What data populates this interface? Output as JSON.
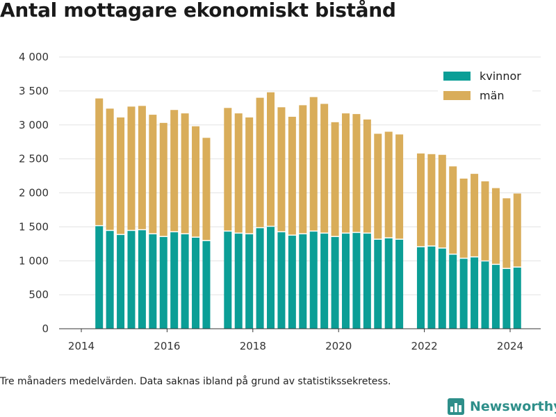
{
  "title": "Antal mottagare ekonomiskt bistånd",
  "footnote": "Tre månaders medelvärden. Data saknas ibland på grund av statistikssekretess.",
  "brand": {
    "name": "Newsworthy",
    "icon": "bar-chart-logo-icon",
    "color": "#2e8f8a"
  },
  "chart_data": {
    "type": "bar",
    "stacked": true,
    "title": "",
    "xlabel": "",
    "ylabel": "",
    "x_ticks": [
      "2014",
      "2016",
      "2018",
      "2020",
      "2022",
      "2024"
    ],
    "y_ticks": [
      "0",
      "500",
      "1 000",
      "1 500",
      "2 000",
      "2 500",
      "3 000",
      "3 500",
      "4 000"
    ],
    "ylim": [
      0,
      4000
    ],
    "grid": true,
    "legend_position": "top-right",
    "x": [
      "2014-06",
      "2014-09",
      "2014-12",
      "2015-03",
      "2015-06",
      "2015-09",
      "2015-12",
      "2016-03",
      "2016-06",
      "2016-09",
      "2016-12",
      "2017-06",
      "2017-09",
      "2017-12",
      "2018-03",
      "2018-06",
      "2018-09",
      "2018-12",
      "2019-03",
      "2019-06",
      "2019-09",
      "2019-12",
      "2020-03",
      "2020-06",
      "2020-09",
      "2020-12",
      "2021-03",
      "2021-06",
      "2021-12",
      "2022-03",
      "2022-06",
      "2022-09",
      "2022-12",
      "2023-03",
      "2023-06",
      "2023-09",
      "2023-12",
      "2024-03"
    ],
    "series": [
      {
        "name": "kvinnor",
        "color": "#0b9e96",
        "values": [
          1510,
          1440,
          1380,
          1440,
          1450,
          1390,
          1350,
          1420,
          1390,
          1340,
          1290,
          1430,
          1400,
          1390,
          1480,
          1500,
          1420,
          1370,
          1390,
          1430,
          1400,
          1350,
          1400,
          1410,
          1400,
          1310,
          1330,
          1310,
          1200,
          1210,
          1180,
          1090,
          1030,
          1050,
          990,
          940,
          880,
          900
        ]
      },
      {
        "name": "män",
        "color": "#d9ad5a",
        "values": [
          1880,
          1800,
          1730,
          1830,
          1830,
          1760,
          1680,
          1800,
          1780,
          1640,
          1520,
          1820,
          1770,
          1720,
          1920,
          1980,
          1840,
          1750,
          1900,
          1980,
          1910,
          1690,
          1770,
          1750,
          1680,
          1560,
          1570,
          1550,
          1380,
          1360,
          1380,
          1300,
          1180,
          1230,
          1180,
          1130,
          1040,
          1090
        ]
      }
    ]
  }
}
